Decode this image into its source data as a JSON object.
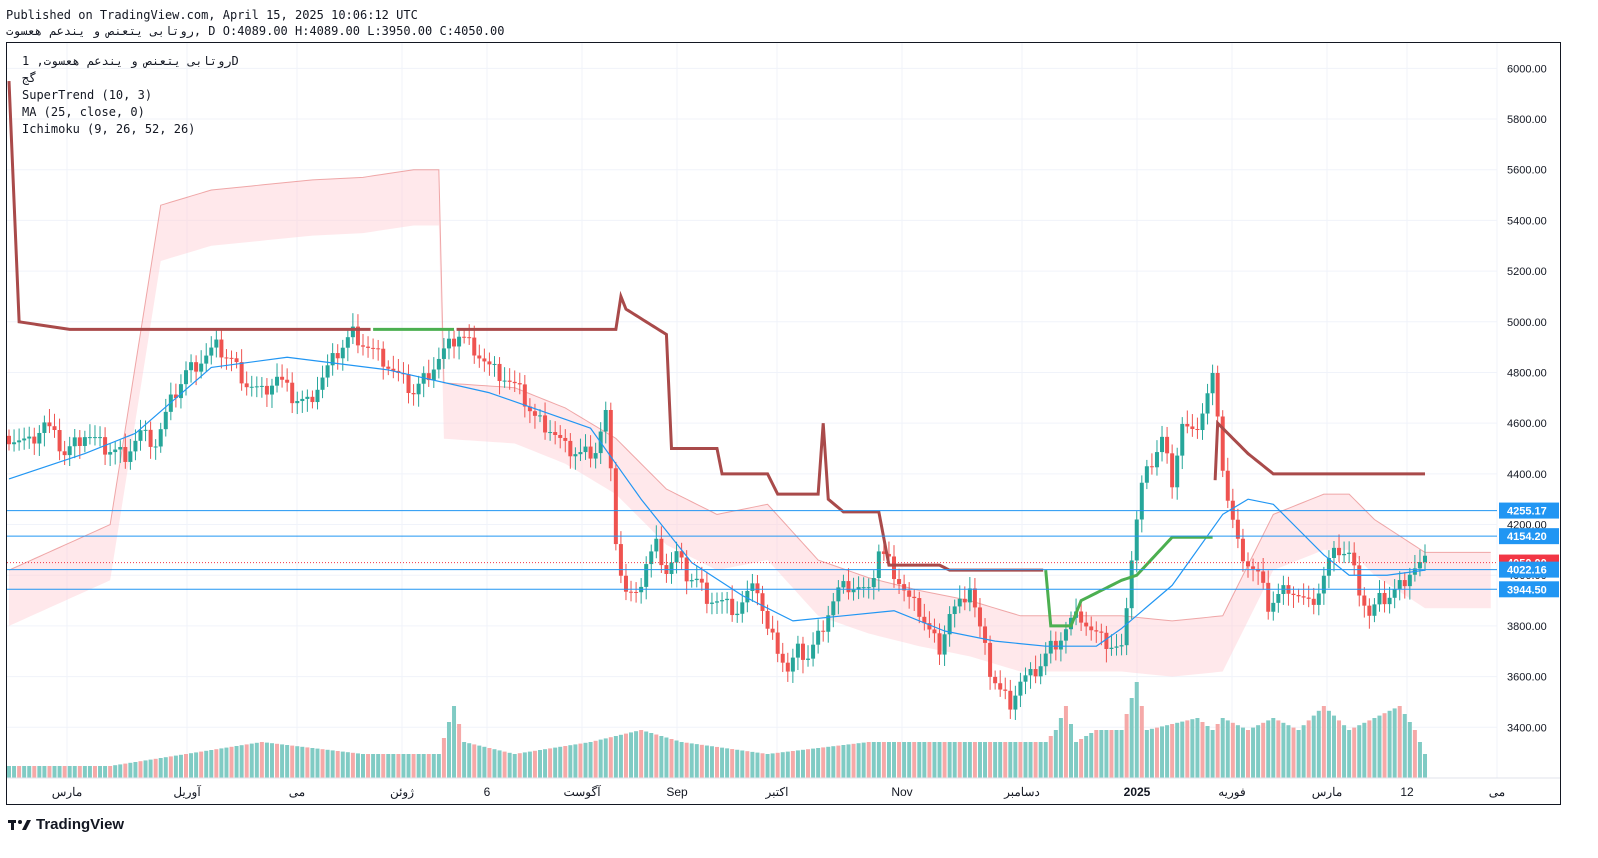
{
  "header": {
    "published": "Published on TradingView.com, April 15, 2025 10:06:12 UTC",
    "ohlc_line": "روتابی یتعنص و یندعم هعسوت, D O:4089.00 H:4089.00 L:3950.00 C:4050.00"
  },
  "legend": {
    "symbol_line": "روتابی یتعنص و یندعم هعسوت, 1D",
    "exchange": "گج",
    "indicators": [
      "SuperTrend (10, 3)",
      "MA (25, close, 0)",
      "Ichimoku (9, 26, 52, 26)"
    ]
  },
  "brand": {
    "name": "TradingView"
  },
  "colors": {
    "bull": "#26a69a",
    "bear": "#ef5350",
    "supertrend_up": "#4caf50",
    "supertrend_down": "#a94a4a",
    "ma": "#2196f3",
    "cloud_bull": "#c8e6c9",
    "cloud_bear": "#ffcdd2",
    "hline": "#2196f3",
    "last_price": "#f23645"
  },
  "chart_data": {
    "type": "candlestick",
    "title": "روتابی یتعنص و یندعم هعسوت, 1D",
    "ylim": [
      3200,
      6100
    ],
    "y_ticks": [
      3400,
      3600,
      3800,
      4000,
      4200,
      4400,
      4600,
      4800,
      5000,
      5200,
      5400,
      5600,
      5800,
      6000
    ],
    "y_tick_labels": [
      "3400.00",
      "3600.00",
      "3800.00",
      "4000.00",
      "4200.00",
      "4400.00",
      "4600.00",
      "4800.00",
      "5000.00",
      "5200.00",
      "5400.00",
      "5600.00",
      "5800.00",
      "6000.00"
    ],
    "x_labels": [
      "مارس",
      "آوریل",
      "می",
      "ژوئن",
      "6",
      "آگوست",
      "Sep",
      "اکتبر",
      "Nov",
      "دسامبر",
      "2025",
      "فوریه",
      "مارس",
      "12",
      "می"
    ],
    "price_labels": [
      {
        "value": 4255.17,
        "text": "4255.17",
        "style": "hline"
      },
      {
        "value": 4154.2,
        "text": "4154.20",
        "style": "hline"
      },
      {
        "value": 4050.0,
        "text": "4050.00",
        "style": "last"
      },
      {
        "value": 4022.16,
        "text": "4022.16",
        "style": "hline"
      },
      {
        "value": 3944.5,
        "text": "3944.50",
        "style": "hline"
      }
    ],
    "horizontal_lines": [
      4255.17,
      4154.2,
      4022.16,
      3944.5
    ],
    "last_close": 4050.0,
    "ohlc_last": {
      "open": 4089.0,
      "high": 4089.0,
      "low": 3950.0,
      "close": 4050.0
    },
    "close_path": [
      [
        0,
        4550
      ],
      [
        8,
        4520
      ],
      [
        14,
        4600
      ],
      [
        22,
        4480
      ],
      [
        30,
        4560
      ],
      [
        38,
        4500
      ],
      [
        46,
        4480
      ],
      [
        52,
        4560
      ],
      [
        58,
        4520
      ],
      [
        64,
        4680
      ],
      [
        70,
        4800
      ],
      [
        76,
        4850
      ],
      [
        82,
        4900
      ],
      [
        88,
        4850
      ],
      [
        94,
        4760
      ],
      [
        100,
        4720
      ],
      [
        106,
        4780
      ],
      [
        112,
        4700
      ],
      [
        118,
        4680
      ],
      [
        124,
        4780
      ],
      [
        130,
        4880
      ],
      [
        136,
        4960
      ],
      [
        142,
        4900
      ],
      [
        148,
        4850
      ],
      [
        154,
        4780
      ],
      [
        160,
        4720
      ],
      [
        166,
        4800
      ],
      [
        172,
        4880
      ],
      [
        178,
        4950
      ],
      [
        184,
        4900
      ],
      [
        190,
        4820
      ],
      [
        196,
        4780
      ],
      [
        202,
        4720
      ],
      [
        208,
        4620
      ],
      [
        214,
        4580
      ],
      [
        220,
        4500
      ],
      [
        226,
        4480
      ],
      [
        232,
        4500
      ],
      [
        236,
        4640
      ],
      [
        240,
        4150
      ],
      [
        243,
        3940
      ],
      [
        248,
        3900
      ],
      [
        252,
        4050
      ],
      [
        256,
        4120
      ],
      [
        260,
        4020
      ],
      [
        264,
        4080
      ],
      [
        268,
        4000
      ],
      [
        272,
        3980
      ],
      [
        276,
        3920
      ],
      [
        280,
        3900
      ],
      [
        284,
        3880
      ],
      [
        288,
        3860
      ],
      [
        292,
        3920
      ],
      [
        296,
        3950
      ],
      [
        300,
        3780
      ],
      [
        304,
        3720
      ],
      [
        308,
        3620
      ],
      [
        312,
        3700
      ],
      [
        316,
        3680
      ],
      [
        320,
        3760
      ],
      [
        324,
        3860
      ],
      [
        328,
        3940
      ],
      [
        332,
        3960
      ],
      [
        336,
        3950
      ],
      [
        340,
        3920
      ],
      [
        344,
        4100
      ],
      [
        348,
        4050
      ],
      [
        352,
        3980
      ],
      [
        356,
        3900
      ],
      [
        360,
        3860
      ],
      [
        364,
        3780
      ],
      [
        368,
        3720
      ],
      [
        372,
        3850
      ],
      [
        376,
        3880
      ],
      [
        380,
        3960
      ],
      [
        384,
        3780
      ],
      [
        388,
        3620
      ],
      [
        392,
        3540
      ],
      [
        396,
        3500
      ],
      [
        400,
        3580
      ],
      [
        404,
        3600
      ],
      [
        408,
        3650
      ],
      [
        412,
        3720
      ],
      [
        416,
        3760
      ],
      [
        420,
        3820
      ],
      [
        424,
        3840
      ],
      [
        428,
        3780
      ],
      [
        432,
        3740
      ],
      [
        436,
        3720
      ],
      [
        440,
        3700
      ],
      [
        443,
        4000
      ],
      [
        446,
        4220
      ],
      [
        448,
        4350
      ],
      [
        452,
        4450
      ],
      [
        456,
        4540
      ],
      [
        460,
        4380
      ],
      [
        464,
        4600
      ],
      [
        468,
        4550
      ],
      [
        472,
        4650
      ],
      [
        476,
        4780
      ],
      [
        479,
        4500
      ],
      [
        482,
        4300
      ],
      [
        486,
        4120
      ],
      [
        490,
        4050
      ],
      [
        494,
        4000
      ],
      [
        498,
        3880
      ],
      [
        502,
        3920
      ],
      [
        506,
        3960
      ],
      [
        510,
        3920
      ],
      [
        514,
        3880
      ],
      [
        518,
        3940
      ],
      [
        522,
        4050
      ],
      [
        526,
        4100
      ],
      [
        530,
        4080
      ],
      [
        534,
        3950
      ],
      [
        538,
        3840
      ],
      [
        542,
        3900
      ],
      [
        546,
        3920
      ],
      [
        550,
        3960
      ],
      [
        554,
        4020
      ],
      [
        558,
        4040
      ],
      [
        560,
        4050
      ]
    ],
    "series": [
      {
        "name": "SuperTrend (10, 3)",
        "values_path": [
          [
            0,
            5950
          ],
          [
            4,
            5000
          ],
          [
            24,
            4970
          ],
          [
            240,
            4970
          ],
          [
            242,
            5100
          ],
          [
            244,
            5050
          ],
          [
            260,
            4950
          ],
          [
            262,
            4500
          ],
          [
            280,
            4500
          ],
          [
            282,
            4400
          ],
          [
            300,
            4400
          ],
          [
            304,
            4320
          ],
          [
            320,
            4320
          ],
          [
            322,
            4600
          ],
          [
            324,
            4300
          ],
          [
            330,
            4250
          ],
          [
            344,
            4250
          ],
          [
            348,
            4040
          ],
          [
            368,
            4040
          ],
          [
            372,
            4020
          ],
          [
            410,
            4020
          ],
          [
            412,
            3800
          ],
          [
            420,
            3800
          ],
          [
            424,
            3900
          ],
          [
            440,
            3980
          ],
          [
            446,
            4000
          ],
          [
            460,
            4150
          ],
          [
            476,
            4150
          ],
          [
            478,
            4600
          ],
          [
            482,
            4560
          ],
          [
            490,
            4480
          ],
          [
            500,
            4400
          ],
          [
            530,
            4400
          ],
          [
            560,
            4400
          ]
        ]
      },
      {
        "name": "MA (25, close, 0)",
        "values_path": [
          [
            0,
            4380
          ],
          [
            30,
            4480
          ],
          [
            50,
            4560
          ],
          [
            80,
            4820
          ],
          [
            110,
            4860
          ],
          [
            150,
            4810
          ],
          [
            190,
            4720
          ],
          [
            230,
            4580
          ],
          [
            250,
            4300
          ],
          [
            270,
            4050
          ],
          [
            290,
            3920
          ],
          [
            310,
            3820
          ],
          [
            330,
            3840
          ],
          [
            350,
            3860
          ],
          [
            370,
            3780
          ],
          [
            390,
            3740
          ],
          [
            410,
            3720
          ],
          [
            430,
            3720
          ],
          [
            440,
            3790
          ],
          [
            460,
            3960
          ],
          [
            480,
            4240
          ],
          [
            490,
            4300
          ],
          [
            500,
            4280
          ],
          [
            510,
            4180
          ],
          [
            520,
            4080
          ],
          [
            530,
            4000
          ],
          [
            545,
            4000
          ],
          [
            560,
            4020
          ]
        ]
      },
      {
        "name": "Ichimoku (9, 26, 52, 26)",
        "values_path": [
          [
            0,
            3980
          ],
          [
            40,
            4160
          ],
          [
            60,
            5420
          ],
          [
            80,
            5480
          ],
          [
            100,
            5500
          ],
          [
            120,
            5520
          ],
          [
            140,
            5530
          ],
          [
            160,
            5560
          ],
          [
            170,
            5560
          ],
          [
            170,
            4720
          ],
          [
            200,
            4700
          ],
          [
            220,
            4620
          ],
          [
            240,
            4500
          ],
          [
            260,
            4300
          ],
          [
            280,
            4200
          ],
          [
            300,
            4240
          ],
          [
            320,
            4020
          ],
          [
            340,
            3950
          ],
          [
            360,
            3900
          ],
          [
            380,
            3860
          ],
          [
            400,
            3800
          ],
          [
            420,
            3800
          ],
          [
            440,
            3800
          ],
          [
            460,
            3780
          ],
          [
            480,
            3800
          ],
          [
            500,
            4200
          ],
          [
            520,
            4280
          ],
          [
            530,
            4280
          ],
          [
            540,
            4180
          ],
          [
            560,
            4050
          ]
        ]
      }
    ],
    "volume_note": "volume histogram at bottom of pane",
    "volume_path": [
      [
        0,
        1
      ],
      [
        40,
        1
      ],
      [
        70,
        2
      ],
      [
        100,
        3
      ],
      [
        140,
        2
      ],
      [
        170,
        2
      ],
      [
        176,
        6
      ],
      [
        180,
        3
      ],
      [
        200,
        2
      ],
      [
        230,
        3
      ],
      [
        250,
        4
      ],
      [
        266,
        3
      ],
      [
        300,
        2
      ],
      [
        340,
        3
      ],
      [
        380,
        3
      ],
      [
        410,
        3
      ],
      [
        414,
        4
      ],
      [
        418,
        6
      ],
      [
        422,
        3
      ],
      [
        430,
        4
      ],
      [
        440,
        4
      ],
      [
        446,
        8
      ],
      [
        450,
        4
      ],
      [
        470,
        5
      ],
      [
        476,
        4
      ],
      [
        480,
        5
      ],
      [
        490,
        4
      ],
      [
        500,
        5
      ],
      [
        510,
        4
      ],
      [
        520,
        6
      ],
      [
        530,
        4
      ],
      [
        540,
        5
      ],
      [
        550,
        6
      ],
      [
        556,
        4
      ],
      [
        560,
        2
      ]
    ]
  }
}
